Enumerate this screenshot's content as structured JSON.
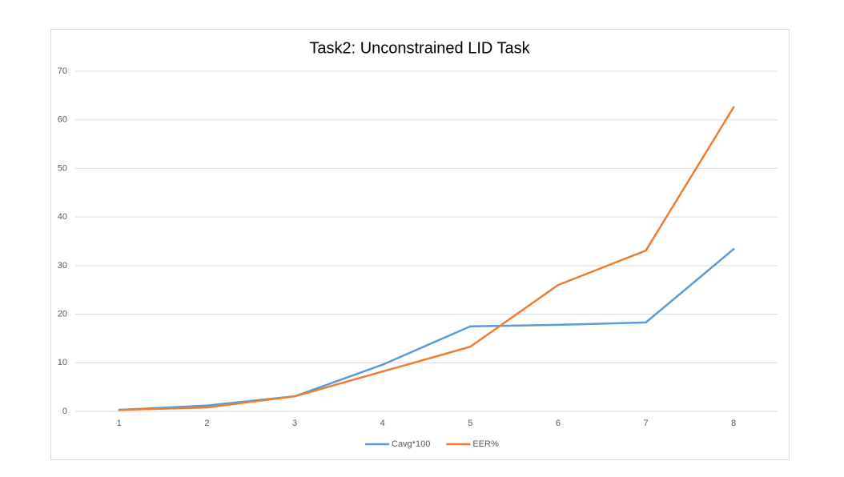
{
  "chart_data": {
    "type": "line",
    "title": "Task2: Unconstrained LID Task",
    "categories": [
      "1",
      "2",
      "3",
      "4",
      "5",
      "6",
      "7",
      "8"
    ],
    "series": [
      {
        "name": "Cavg*100",
        "color": "#5b9bd5",
        "values": [
          0.3,
          1.2,
          3.1,
          9.6,
          17.5,
          17.8,
          18.3,
          33.4
        ]
      },
      {
        "name": "EER%",
        "color": "#ed7d31",
        "values": [
          0.3,
          0.8,
          3.1,
          8.2,
          13.3,
          26.0,
          33.1,
          62.6
        ]
      }
    ],
    "ylim": [
      0,
      70
    ],
    "yticks": [
      0,
      10,
      20,
      30,
      40,
      50,
      60,
      70
    ],
    "grid": true,
    "legend": "bottom"
  }
}
